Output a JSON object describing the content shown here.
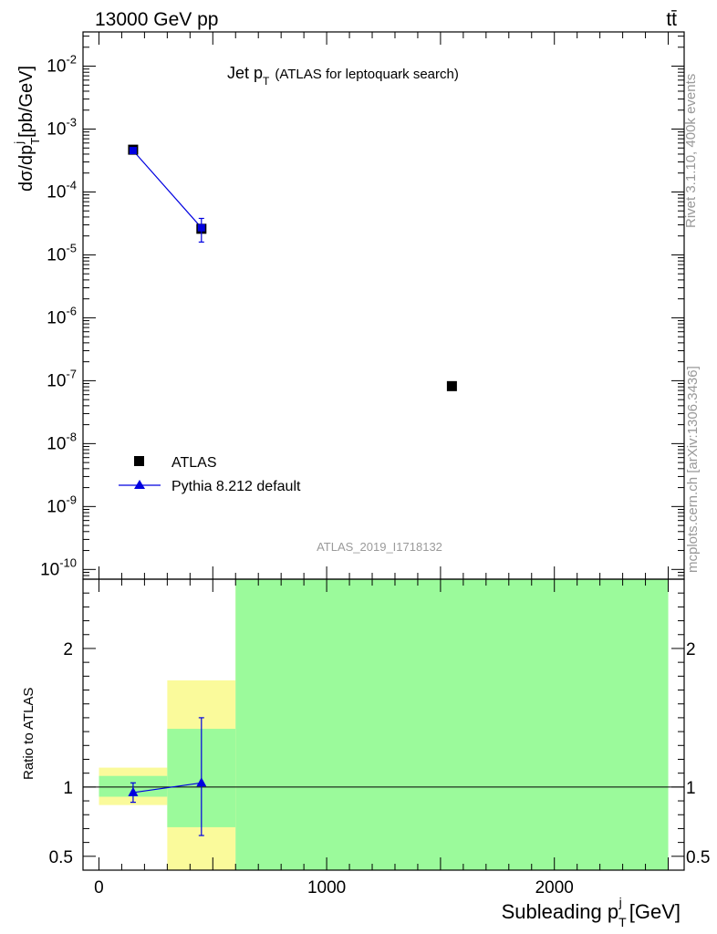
{
  "header": {
    "energy": "13000 GeV pp",
    "process": "tt̄"
  },
  "side_labels": {
    "rivet": "Rivet 3.1.10,  400k events",
    "mcplots": "mcplots.cern.ch [arXiv:1306.3436]"
  },
  "analysis_id": "ATLAS_2019_I1718132",
  "colors": {
    "data": "#000000",
    "mc": "#0000e0",
    "band_inner": "#9bfa9b",
    "band_outer": "#fafa9b"
  },
  "chart_data": [
    {
      "type": "scatter",
      "panel": "main",
      "title_main": "Jet p",
      "title_sub": "T",
      "title_rest": "(ATLAS for leptoquark search)",
      "ylabel": "dσ/dp",
      "ylabel_sub": "T",
      "ylabel_sup": "j",
      "ylabel_unit": "[pb/GeV]",
      "yscale": "log",
      "ylim": [
        7e-11,
        0.035
      ],
      "xlim": [
        -70,
        2570
      ],
      "ytick_exponents": [
        "-10",
        "-9",
        "-8",
        "-7",
        "-6",
        "-5",
        "-4",
        "-3",
        "-2"
      ],
      "legend": {
        "position": "bottom-left",
        "data_label": "ATLAS",
        "mc_label": "Pythia 8.212 default"
      },
      "series": [
        {
          "name": "ATLAS",
          "x": [
            150,
            450,
            1550
          ],
          "y": [
            0.00047,
            2.6e-05,
            8.2e-08
          ],
          "yerr_lo": [
            3e-05,
            2.5e-06,
            0
          ],
          "yerr_hi": [
            3e-05,
            2.5e-06,
            0
          ],
          "marker": "square"
        },
        {
          "name": "Pythia 8.212 default",
          "x": [
            150,
            450
          ],
          "y": [
            0.000455,
            2.7e-05
          ],
          "yerr_lo": [
            2e-05,
            1.1e-05
          ],
          "yerr_hi": [
            2e-05,
            1.1e-05
          ],
          "marker": "triangle"
        }
      ]
    },
    {
      "type": "line",
      "panel": "ratio",
      "ylabel": "Ratio to ATLAS",
      "xlabel": "Subleading p",
      "xlabel_sub": "T",
      "xlabel_sup": "j",
      "xlabel_unit": "[GeV]",
      "xlim": [
        -70,
        2570
      ],
      "ylim": [
        0.4,
        2.5
      ],
      "xticks": [
        "0",
        "1000",
        "2000"
      ],
      "xtick_values": [
        0,
        1000,
        2000
      ],
      "yticks": [
        "0.5",
        "1",
        "2"
      ],
      "ytick_values": [
        0.5,
        1,
        2
      ],
      "bands": [
        {
          "x0": 0,
          "x1": 300,
          "inner": [
            0.93,
            1.08
          ],
          "outer": [
            0.87,
            1.14
          ]
        },
        {
          "x0": 300,
          "x1": 600,
          "inner": [
            0.71,
            1.42
          ],
          "outer": [
            0.4,
            1.77
          ]
        },
        {
          "x0": 600,
          "x1": 2500,
          "inner": [
            0.4,
            2.5
          ],
          "outer": [
            0.4,
            2.5
          ]
        }
      ],
      "series": [
        {
          "name": "Pythia 8.212 default",
          "x": [
            150,
            450
          ],
          "y": [
            0.96,
            1.03
          ],
          "yerr_lo": [
            0.07,
            0.38
          ],
          "yerr_hi": [
            0.07,
            0.47
          ]
        }
      ]
    }
  ]
}
